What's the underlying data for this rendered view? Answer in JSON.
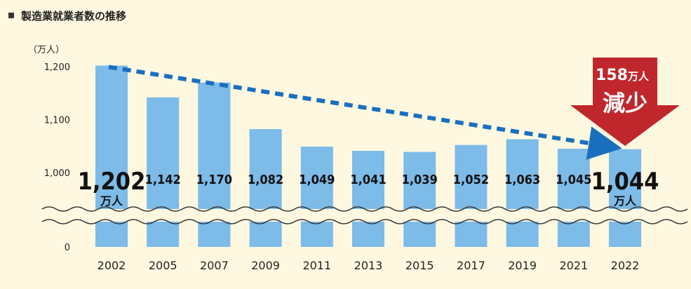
{
  "title": "製造業就業者数の推移",
  "chart_data": {
    "type": "bar",
    "ylabel": "（万人）",
    "y_ticks": [
      "1,200",
      "1,100",
      "1,000",
      "0"
    ],
    "axis_break": true,
    "categories": [
      "2002",
      "2005",
      "2007",
      "2009",
      "2011",
      "2013",
      "2015",
      "2017",
      "2019",
      "2021",
      "2022"
    ],
    "values": [
      1202,
      1142,
      1170,
      1082,
      1049,
      1041,
      1039,
      1052,
      1063,
      1045,
      1044
    ],
    "value_labels": [
      "1,202",
      "1,142",
      "1,170",
      "1,082",
      "1,049",
      "1,041",
      "1,039",
      "1,052",
      "1,063",
      "1,045",
      "1,044"
    ],
    "unit_label": "万人",
    "bar_color": "#7dbbe8",
    "trend_color": "#1a6fbf",
    "annotation": {
      "number": "158",
      "unit": "万人",
      "text": "減少",
      "color": "#c0272d"
    }
  }
}
